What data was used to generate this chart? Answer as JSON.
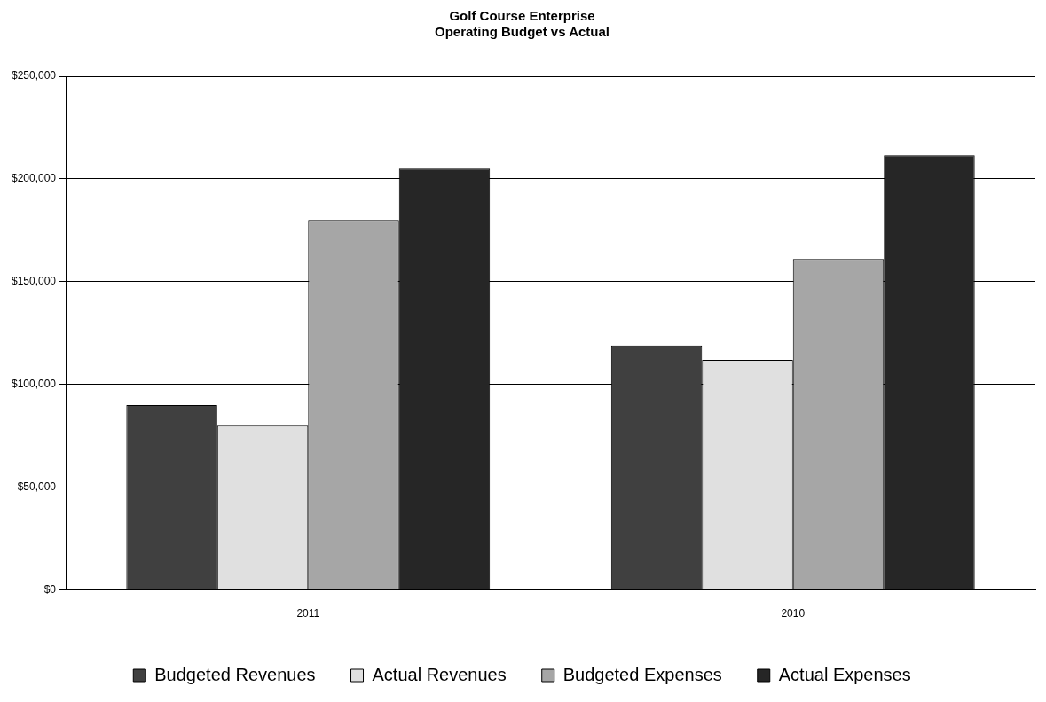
{
  "chart_data": {
    "type": "bar",
    "title": "Golf Course Enterprise\nOperating Budget vs Actual",
    "categories": [
      "2011",
      "2010"
    ],
    "series": [
      {
        "name": "Budgeted Revenues",
        "color": "#404040",
        "values": [
          90000,
          119000
        ]
      },
      {
        "name": "Actual Revenues",
        "color": "#e0e0e0",
        "values": [
          80000,
          112000
        ]
      },
      {
        "name": "Budgeted Expenses",
        "color": "#a6a6a6",
        "values": [
          180000,
          161000
        ]
      },
      {
        "name": "Actual Expenses",
        "color": "#262626",
        "values": [
          205000,
          211500
        ]
      }
    ],
    "ylim": [
      0,
      250000
    ],
    "yticks": [
      {
        "value": 0,
        "label": "$0"
      },
      {
        "value": 50000,
        "label": "$50,000"
      },
      {
        "value": 100000,
        "label": "$100,000"
      },
      {
        "value": 150000,
        "label": "$150,000"
      },
      {
        "value": 200000,
        "label": "$200,000"
      },
      {
        "value": 250000,
        "label": "$250,000"
      }
    ],
    "grid": "y",
    "legend": "bottom"
  }
}
